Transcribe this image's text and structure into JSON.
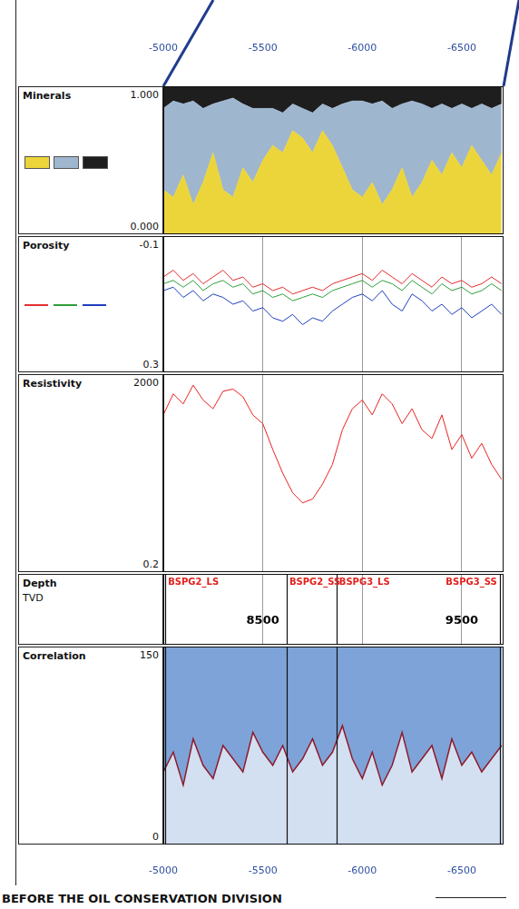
{
  "chart_data": {
    "type": "well_log",
    "grid": true,
    "xlim": [
      -5000,
      -6710
    ],
    "xticks": [
      -5000,
      -5500,
      -6000,
      -6500
    ],
    "x": [
      -5000,
      -5050,
      -5100,
      -5150,
      -5200,
      -5250,
      -5300,
      -5350,
      -5400,
      -5450,
      -5500,
      -5550,
      -5600,
      -5650,
      -5700,
      -5750,
      -5800,
      -5850,
      -5900,
      -5950,
      -6000,
      -6050,
      -6100,
      -6150,
      -6200,
      -6250,
      -6300,
      -6350,
      -6400,
      -6450,
      -6500,
      -6550,
      -6600,
      -6650,
      -6700
    ],
    "tops": {
      "names": [
        "BSPG2_LS",
        "BSPG2_SS",
        "BSPG3_LS",
        "BSPG3_SS"
      ],
      "x": [
        -5010,
        -5620,
        -5870,
        -6690
      ],
      "color": "#e0201c"
    },
    "depth_labels": {
      "labels": [
        "8500",
        "9500"
      ],
      "x": [
        -5500,
        -6500
      ]
    },
    "tracks": [
      {
        "type": "area",
        "title": "Minerals",
        "stacked": true,
        "ylim": [
          0,
          1
        ],
        "yticks": [
          {
            "value": 0,
            "label": "0.000"
          },
          {
            "value": 1,
            "label": "1.000"
          }
        ],
        "series": [
          {
            "color": "#ecd53a",
            "values": [
              0.3,
              0.25,
              0.4,
              0.2,
              0.35,
              0.55,
              0.3,
              0.25,
              0.45,
              0.35,
              0.5,
              0.6,
              0.55,
              0.7,
              0.65,
              0.55,
              0.7,
              0.6,
              0.45,
              0.3,
              0.25,
              0.35,
              0.2,
              0.3,
              0.45,
              0.25,
              0.35,
              0.5,
              0.4,
              0.55,
              0.45,
              0.6,
              0.5,
              0.4,
              0.55
            ]
          },
          {
            "color": "#9fb6cf",
            "values": [
              0.55,
              0.65,
              0.48,
              0.7,
              0.5,
              0.33,
              0.6,
              0.67,
              0.43,
              0.5,
              0.35,
              0.25,
              0.27,
              0.18,
              0.2,
              0.27,
              0.18,
              0.25,
              0.43,
              0.6,
              0.65,
              0.53,
              0.7,
              0.55,
              0.43,
              0.65,
              0.53,
              0.35,
              0.48,
              0.3,
              0.43,
              0.25,
              0.38,
              0.45,
              0.33
            ]
          },
          {
            "color": "#1e1e1e",
            "values": [
              0.15,
              0.1,
              0.12,
              0.1,
              0.15,
              0.12,
              0.1,
              0.08,
              0.12,
              0.15,
              0.15,
              0.15,
              0.18,
              0.12,
              0.15,
              0.18,
              0.12,
              0.15,
              0.12,
              0.1,
              0.1,
              0.12,
              0.1,
              0.15,
              0.12,
              0.1,
              0.12,
              0.15,
              0.12,
              0.15,
              0.12,
              0.15,
              0.12,
              0.15,
              0.12
            ]
          }
        ]
      },
      {
        "type": "line",
        "title": "Porosity",
        "ylim": [
          0.3,
          -0.1
        ],
        "yticks": [
          0.3,
          -0.1
        ],
        "series": [
          {
            "color": "#e32d2d",
            "values": [
              0.02,
              0.0,
              0.03,
              0.01,
              0.04,
              0.02,
              0.0,
              0.03,
              0.02,
              0.05,
              0.04,
              0.06,
              0.05,
              0.07,
              0.06,
              0.05,
              0.06,
              0.04,
              0.03,
              0.02,
              0.01,
              0.03,
              0.0,
              0.02,
              0.04,
              0.01,
              0.03,
              0.05,
              0.02,
              0.04,
              0.03,
              0.05,
              0.04,
              0.02,
              0.04
            ]
          },
          {
            "color": "#2f9e3a",
            "values": [
              0.04,
              0.03,
              0.05,
              0.03,
              0.06,
              0.04,
              0.03,
              0.05,
              0.04,
              0.07,
              0.06,
              0.08,
              0.07,
              0.09,
              0.08,
              0.07,
              0.08,
              0.06,
              0.05,
              0.04,
              0.03,
              0.05,
              0.03,
              0.04,
              0.06,
              0.03,
              0.05,
              0.07,
              0.04,
              0.06,
              0.05,
              0.07,
              0.06,
              0.04,
              0.06
            ]
          },
          {
            "color": "#1f3fbf",
            "values": [
              0.06,
              0.05,
              0.08,
              0.06,
              0.09,
              0.07,
              0.08,
              0.1,
              0.09,
              0.12,
              0.11,
              0.14,
              0.15,
              0.13,
              0.16,
              0.14,
              0.15,
              0.12,
              0.1,
              0.08,
              0.07,
              0.09,
              0.06,
              0.1,
              0.12,
              0.07,
              0.09,
              0.12,
              0.1,
              0.13,
              0.11,
              0.14,
              0.12,
              0.1,
              0.13
            ]
          }
        ]
      },
      {
        "type": "line",
        "title": "Resistivity",
        "log": "y",
        "ylim": [
          0.2,
          2000
        ],
        "yticks": [
          0.2,
          2000
        ],
        "series": [
          {
            "color": "#e8231f",
            "values": [
              300,
              800,
              500,
              1200,
              600,
              400,
              900,
              1000,
              700,
              300,
              200,
              60,
              20,
              8,
              5,
              6,
              12,
              30,
              150,
              400,
              600,
              300,
              800,
              500,
              200,
              400,
              150,
              100,
              300,
              60,
              120,
              40,
              80,
              30,
              15
            ]
          }
        ]
      },
      {
        "type": "depth",
        "title": "Depth",
        "subtitle": "TVD"
      },
      {
        "type": "area",
        "title": "Correlation",
        "ylim": [
          0,
          150
        ],
        "yticks": [
          0,
          150
        ],
        "series": [
          {
            "color": "#8e1b2a",
            "values": [
              55,
              70,
              45,
              80,
              60,
              50,
              75,
              65,
              55,
              85,
              70,
              60,
              75,
              55,
              65,
              80,
              60,
              70,
              90,
              65,
              50,
              70,
              45,
              60,
              85,
              55,
              65,
              75,
              50,
              80,
              60,
              70,
              55,
              65,
              75
            ]
          }
        ]
      }
    ]
  },
  "footer": "BEFORE THE OIL CONSERVATION DIVISION"
}
